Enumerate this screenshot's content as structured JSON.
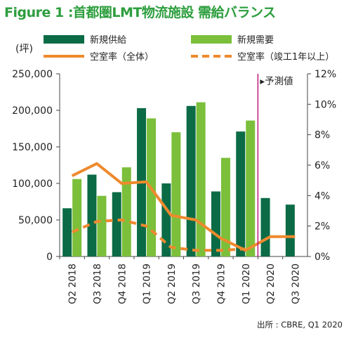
{
  "title": "Figure 1 :首都圏LMT物流施設 需給バランス",
  "source": "出所 : CBRE, Q1 2020",
  "chart_data": {
    "type": "bar",
    "categories": [
      "Q2 2018",
      "Q3 2018",
      "Q4 2018",
      "Q1 2019",
      "Q2 2019",
      "Q3 2019",
      "Q4 2019",
      "Q1 2020",
      "Q2 2020",
      "Q3 2020"
    ],
    "y_left_label": "(坪)",
    "y_left_ticks": [
      "0",
      "50,000",
      "100,000",
      "150,000",
      "200,000",
      "250,000"
    ],
    "y_left_lim": [
      0,
      250000
    ],
    "y_right_ticks": [
      "0%",
      "2%",
      "4%",
      "6%",
      "8%",
      "10%",
      "12%"
    ],
    "y_right_lim": [
      0,
      12
    ],
    "forecast_label": "▸予測値",
    "forecast_after_index": 7,
    "bar_series": [
      {
        "name": "新規供給",
        "color": "#0b6b46",
        "values": [
          66000,
          112000,
          88000,
          203000,
          100000,
          206000,
          89000,
          171000,
          80000,
          71000
        ]
      },
      {
        "name": "新規需要",
        "color": "#7bbf3a",
        "values": [
          106000,
          83000,
          122000,
          189000,
          170000,
          211000,
          135000,
          186000,
          null,
          null
        ]
      }
    ],
    "line_series": [
      {
        "name": "空室率（全体）",
        "color": "#ee8a2e",
        "style": "solid",
        "values": [
          5.3,
          6.1,
          4.8,
          4.9,
          2.7,
          2.4,
          1.2,
          0.4,
          1.3,
          1.3
        ]
      },
      {
        "name": "空室率（竣工1年以上）",
        "color": "#ee8a2e",
        "style": "dashed",
        "values": [
          1.6,
          2.3,
          2.4,
          2.0,
          0.6,
          0.4,
          0.4,
          0.5,
          null,
          null
        ]
      }
    ],
    "legend": [
      {
        "name": "新規供給",
        "kind": "bar",
        "color": "#0b6b46"
      },
      {
        "name": "新規需要",
        "kind": "bar",
        "color": "#7bbf3a"
      },
      {
        "name": "空室率（全体）",
        "kind": "line",
        "color": "#ee8a2e"
      },
      {
        "name": "空室率（竣工1年以上）",
        "kind": "dashed",
        "color": "#ee8a2e"
      }
    ],
    "forecast_line_color": "#c2187a",
    "grid": false
  }
}
